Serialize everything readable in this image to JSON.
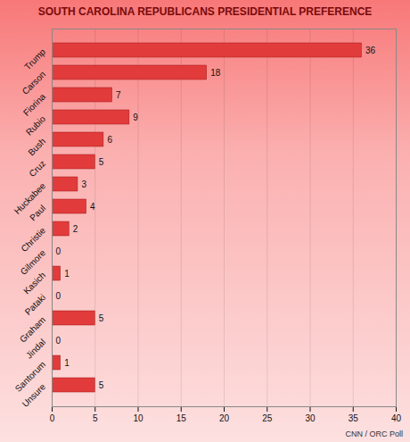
{
  "chart_data": {
    "type": "bar",
    "title": "SOUTH CAROLINA REPUBLICANS PRESIDENTIAL PREFERENCE",
    "caption": "CNN / ORC Poll",
    "orientation": "horizontal",
    "categories": [
      "Trump",
      "Carson",
      "Fiorina",
      "Rubio",
      "Bush",
      "Cruz",
      "Huckabee",
      "Paul",
      "Christie",
      "Gilmore",
      "Kasich",
      "Pataki",
      "Graham",
      "Jindal",
      "Santorum",
      "Unsure"
    ],
    "values": [
      36,
      18,
      7,
      9,
      6,
      5,
      3,
      4,
      2,
      0,
      1,
      0,
      5,
      0,
      1,
      5
    ],
    "color": "#e23b3b",
    "xlim": [
      0,
      40
    ],
    "xticks": [
      0,
      5,
      10,
      15,
      20,
      25,
      30,
      35,
      40
    ],
    "grid": true,
    "data_labels": true
  }
}
